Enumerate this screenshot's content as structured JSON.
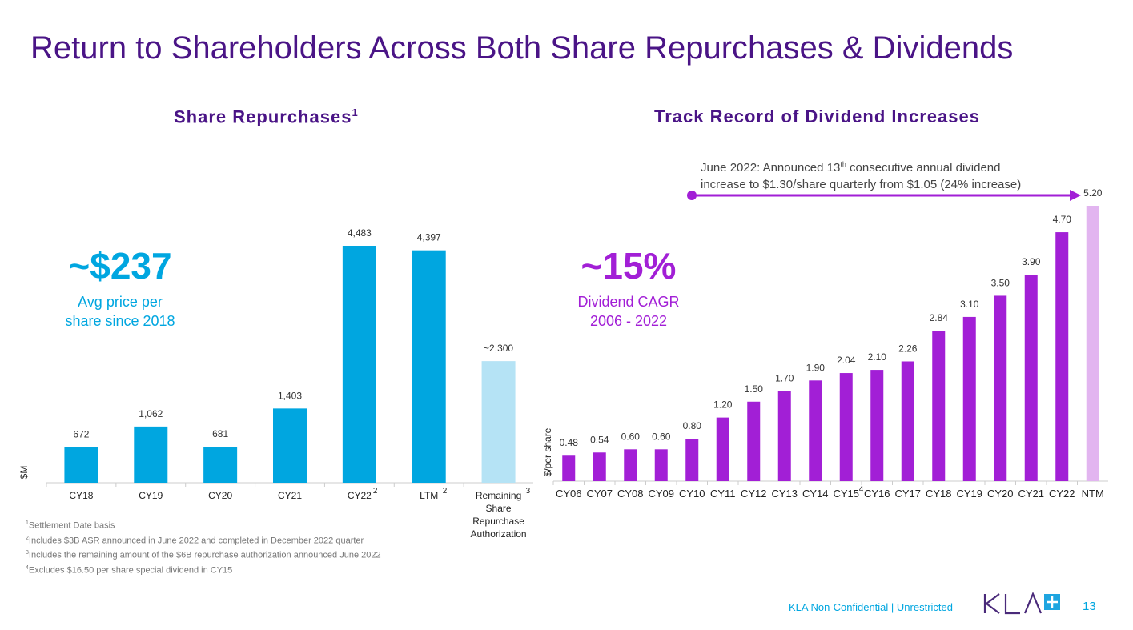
{
  "title": "Return to Shareholders Across Both Share Repurchases & Dividends",
  "colors": {
    "title": "#4a1486",
    "repurchase": "#00a6e0",
    "repurchase_light": "#b5e3f5",
    "dividend": "#a21fd6",
    "dividend_light": "#e2b5f0",
    "callout_blue": "#00a6e0",
    "callout_purple": "#a21fd6"
  },
  "left": {
    "subtitle": "Share Repurchases",
    "subtitle_sup": "1",
    "callout_value": "~$237",
    "callout_text1": "Avg price per",
    "callout_text2": "share since 2018"
  },
  "right": {
    "subtitle": "Track Record of Dividend Increases",
    "callout_value": "~15%",
    "callout_text1": "Dividend CAGR",
    "callout_text2": "2006 - 2022",
    "annotation_line1a": "June 2022: Announced 13",
    "annotation_sup": "th",
    "annotation_line1b": " consecutive annual dividend",
    "annotation_line2": "increase to $1.30/share quarterly from $1.05 (24% increase)"
  },
  "chart_data": [
    {
      "type": "bar",
      "title": "Share Repurchases",
      "ylabel": "$M",
      "categories": [
        "CY18",
        "CY19",
        "CY20",
        "CY21",
        "CY22",
        "LTM",
        "Remaining Share Repurchase Authorization"
      ],
      "category_sups": [
        "",
        "",
        "",
        "",
        "2",
        "2",
        "3"
      ],
      "values": [
        672,
        1062,
        681,
        1403,
        4483,
        4397,
        2300
      ],
      "labels": [
        "672",
        "1,062",
        "681",
        "1,403",
        "4,483",
        "4,397",
        "~2,300"
      ],
      "highlight_last": true,
      "grid": false
    },
    {
      "type": "bar",
      "title": "Track Record of Dividend Increases",
      "ylabel": "$/per share",
      "categories": [
        "CY06",
        "CY07",
        "CY08",
        "CY09",
        "CY10",
        "CY11",
        "CY12",
        "CY13",
        "CY14",
        "CY15",
        "CY16",
        "CY17",
        "CY18",
        "CY19",
        "CY20",
        "CY21",
        "CY22",
        "NTM"
      ],
      "category_sups": [
        "",
        "",
        "",
        "",
        "",
        "",
        "",
        "",
        "",
        "4",
        "",
        "",
        "",
        "",
        "",
        "",
        "",
        ""
      ],
      "values": [
        0.48,
        0.54,
        0.6,
        0.6,
        0.8,
        1.2,
        1.5,
        1.7,
        1.9,
        2.04,
        2.1,
        2.26,
        2.84,
        3.1,
        3.5,
        3.9,
        4.7,
        5.2
      ],
      "labels": [
        "0.48",
        "0.54",
        "0.60",
        "0.60",
        "0.80",
        "1.20",
        "1.50",
        "1.70",
        "1.90",
        "2.04",
        "2.10",
        "2.26",
        "2.84",
        "3.10",
        "3.50",
        "3.90",
        "4.70",
        "5.20"
      ],
      "highlight_last": true,
      "grid": false
    }
  ],
  "footnotes": [
    {
      "sup": "1",
      "text": "Settlement Date basis"
    },
    {
      "sup": "2",
      "text": "Includes $3B ASR announced in June 2022 and completed in December 2022 quarter"
    },
    {
      "sup": "3",
      "text": "Includes the remaining amount of the $6B repurchase authorization announced June 2022"
    },
    {
      "sup": "4",
      "text": "Excludes $16.50 per share special dividend in CY15"
    }
  ],
  "footer": {
    "classification": "KLA Non-Confidential | Unrestricted",
    "logo": "KLA+",
    "page": "13"
  }
}
